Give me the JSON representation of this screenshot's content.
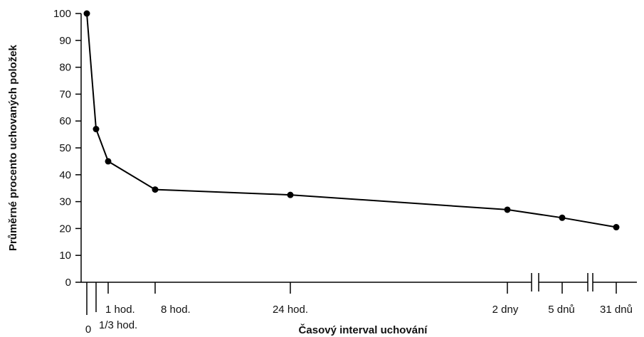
{
  "chart_data": {
    "type": "line",
    "title": "",
    "xlabel": "Časový interval uchování",
    "ylabel": "Průměrné procento uchovaných položek",
    "ylim": [
      0,
      100
    ],
    "yticks": [
      0,
      10,
      20,
      30,
      40,
      50,
      60,
      70,
      80,
      90,
      100
    ],
    "grid": false,
    "legend": "none",
    "x_scale": "nonlinear, with axis breaks between 2 dny and 5 dnů and between 5 dnů and 31 dnů",
    "line_color": "#000000",
    "points": [
      {
        "label": "0",
        "y": 100
      },
      {
        "label": "1/3 hod.",
        "y": 57
      },
      {
        "label": "1 hod.",
        "y": 45
      },
      {
        "label": "8 hod.",
        "y": 34.5
      },
      {
        "label": "24 hod.",
        "y": 32.5
      },
      {
        "label": "2 dny",
        "y": 27
      },
      {
        "label": "5 dnů",
        "y": 24
      },
      {
        "label": "31 dnů",
        "y": 20.5
      }
    ]
  }
}
